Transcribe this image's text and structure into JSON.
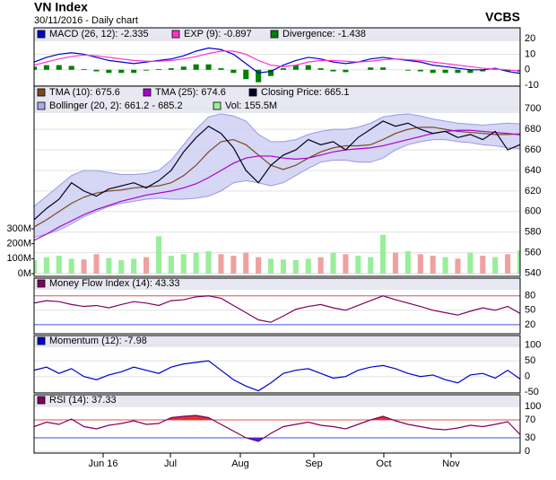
{
  "header": {
    "title": "VN Index",
    "subtitle": "30/11/2016 - Daily chart",
    "brand": "VCBS"
  },
  "chart_data": [
    {
      "type": "line",
      "x": [
        0,
        1,
        2,
        3,
        4,
        5,
        6,
        7,
        8,
        9,
        10,
        11,
        12,
        13,
        14,
        15,
        16,
        17,
        18,
        19,
        20,
        21,
        22,
        23,
        24,
        25,
        26,
        27,
        28,
        29,
        30,
        31,
        32,
        33,
        34,
        35,
        36,
        37,
        38,
        39
      ],
      "xlim": [
        0,
        39
      ],
      "ylim": [
        -10.5,
        27
      ],
      "yticks": [
        20,
        10,
        0,
        -10
      ],
      "series": [
        {
          "name": "MACD (26, 12): -2.335",
          "color": "#0000cc",
          "type": "line",
          "values": [
            5,
            8,
            10,
            11,
            10,
            8,
            6,
            5,
            4,
            5,
            6,
            7,
            9,
            12,
            14,
            13,
            10,
            4,
            -2,
            -1,
            3,
            6,
            8,
            7,
            5,
            4,
            5,
            7,
            8,
            7,
            6,
            5,
            3,
            2,
            1,
            0,
            0,
            1,
            -1,
            -2.335
          ]
        },
        {
          "name": "EXP (9): -0.897",
          "color": "#ff33cc",
          "type": "line",
          "values": [
            3,
            5,
            7,
            8.5,
            9.5,
            9,
            8,
            7,
            6,
            5.5,
            5.5,
            6,
            7,
            8.5,
            10.5,
            12,
            12,
            10,
            6,
            3,
            2,
            3,
            5,
            6,
            6,
            5.5,
            5,
            5.5,
            6.5,
            7,
            6.5,
            6,
            5,
            4,
            3,
            2,
            1,
            0.5,
            0,
            -0.897
          ]
        },
        {
          "name": "Divergence: -1.438",
          "color": "#008000",
          "type": "bar",
          "values": [
            2,
            3,
            3,
            2.5,
            0.5,
            -1,
            -2,
            -2,
            -2,
            -0.5,
            0.5,
            1,
            2,
            3.5,
            3.5,
            1,
            -2,
            -6,
            -8,
            -4,
            1,
            3,
            3,
            1,
            -1,
            -1.5,
            0,
            1.5,
            1.5,
            0,
            -0.5,
            -1,
            -2,
            -2,
            -2,
            -2,
            -1,
            0.5,
            -1,
            -1.438
          ]
        }
      ]
    },
    {
      "type": "line",
      "x": [
        0,
        1,
        2,
        3,
        4,
        5,
        6,
        7,
        8,
        9,
        10,
        11,
        12,
        13,
        14,
        15,
        16,
        17,
        18,
        19,
        20,
        21,
        22,
        23,
        24,
        25,
        26,
        27,
        28,
        29,
        30,
        31,
        32,
        33,
        34,
        35,
        36,
        37,
        38,
        39
      ],
      "xlim": [
        0,
        39
      ],
      "ylim": [
        537,
        722
      ],
      "yticks": [
        700,
        680,
        660,
        640,
        620,
        600,
        580,
        560,
        540
      ],
      "y2lim": [
        -18,
        1254
      ],
      "y2ticks": [
        {
          "value": 300,
          "label": "300M"
        },
        {
          "value": 200,
          "label": "200M"
        },
        {
          "value": 100,
          "label": "100M"
        },
        {
          "value": 0,
          "label": "0M"
        }
      ],
      "series": [
        {
          "name": "TMA (10): 675.6",
          "color": "#7a4a1e",
          "type": "line",
          "values": [
            585,
            592,
            600,
            608,
            614,
            618,
            620,
            621,
            623,
            624,
            625,
            628,
            635,
            645,
            658,
            668,
            670,
            665,
            655,
            645,
            641,
            645,
            652,
            658,
            662,
            664,
            664,
            665,
            670,
            676,
            680,
            682,
            682,
            680,
            678,
            677,
            676,
            675,
            675,
            675.6
          ]
        },
        {
          "name": "TMA (25): 674.6",
          "color": "#aa00cc",
          "type": "line",
          "values": [
            572,
            578,
            585,
            591,
            597,
            602,
            606,
            610,
            613,
            616,
            618,
            620,
            623,
            627,
            633,
            640,
            647,
            652,
            654,
            654,
            652,
            651,
            652,
            655,
            658,
            660,
            661,
            662,
            664,
            667,
            670,
            673,
            676,
            678,
            679,
            679,
            678,
            677,
            676,
            674.6
          ]
        },
        {
          "name": "Closing Price: 665.1",
          "color": "#000022",
          "type": "line",
          "values": [
            592,
            603,
            612,
            628,
            620,
            615,
            622,
            625,
            628,
            623,
            630,
            640,
            658,
            672,
            683,
            676,
            662,
            640,
            628,
            645,
            655,
            660,
            670,
            665,
            668,
            660,
            672,
            680,
            688,
            683,
            686,
            680,
            676,
            678,
            672,
            675,
            670,
            678,
            660,
            665.1
          ]
        },
        {
          "name": "Bollinger (20, 2): 661.2 - 685.2",
          "color": "#9999e6",
          "type": "band",
          "upper": [
            605,
            615,
            625,
            635,
            640,
            640,
            638,
            636,
            636,
            637,
            640,
            650,
            665,
            680,
            692,
            695,
            693,
            688,
            675,
            668,
            668,
            670,
            675,
            678,
            680,
            680,
            682,
            686,
            692,
            694,
            695,
            693,
            690,
            688,
            686,
            685,
            684,
            685,
            686,
            685.2
          ],
          "lower": [
            575,
            578,
            582,
            588,
            595,
            600,
            605,
            608,
            610,
            612,
            613,
            612,
            612,
            613,
            615,
            620,
            628,
            630,
            628,
            625,
            628,
            635,
            642,
            648,
            650,
            650,
            648,
            648,
            652,
            660,
            665,
            668,
            670,
            670,
            668,
            667,
            665,
            664,
            662,
            661.2
          ]
        },
        {
          "name": "Vol: 155.5M",
          "color": "#99ee99",
          "type": "bar",
          "axis": "y2",
          "values": [
            90,
            110,
            120,
            100,
            95,
            130,
            105,
            90,
            100,
            110,
            250,
            120,
            130,
            140,
            150,
            130,
            120,
            140,
            110,
            100,
            95,
            90,
            100,
            110,
            140,
            130,
            120,
            110,
            260,
            140,
            150,
            130,
            120,
            110,
            100,
            140,
            120,
            110,
            130,
            155.5
          ]
        }
      ]
    },
    {
      "type": "line",
      "x": [
        0,
        1,
        2,
        3,
        4,
        5,
        6,
        7,
        8,
        9,
        10,
        11,
        12,
        13,
        14,
        15,
        16,
        17,
        18,
        19,
        20,
        21,
        22,
        23,
        24,
        25,
        26,
        27,
        28,
        29,
        30,
        31,
        32,
        33,
        34,
        35,
        36,
        37,
        38,
        39
      ],
      "xlim": [
        0,
        39
      ],
      "ylim": [
        1,
        117
      ],
      "yticks": [
        80,
        50,
        20
      ],
      "upper": 80,
      "lower": 20,
      "series": [
        {
          "name": "Money Flow Index (14): 43.33",
          "color": "#800060",
          "type": "line",
          "values": [
            65,
            70,
            68,
            62,
            58,
            60,
            55,
            62,
            68,
            65,
            60,
            70,
            72,
            78,
            80,
            75,
            60,
            45,
            30,
            25,
            38,
            52,
            58,
            62,
            55,
            50,
            60,
            70,
            80,
            72,
            65,
            58,
            50,
            45,
            40,
            48,
            55,
            50,
            58,
            43.33
          ]
        }
      ]
    },
    {
      "type": "line",
      "x": [
        0,
        1,
        2,
        3,
        4,
        5,
        6,
        7,
        8,
        9,
        10,
        11,
        12,
        13,
        14,
        15,
        16,
        17,
        18,
        19,
        20,
        21,
        22,
        23,
        24,
        25,
        26,
        27,
        28,
        29,
        30,
        31,
        32,
        33,
        34,
        35,
        36,
        37,
        38,
        39
      ],
      "xlim": [
        0,
        39
      ],
      "ylim": [
        -52,
        130
      ],
      "yticks": [
        100,
        50,
        0,
        -50
      ],
      "series": [
        {
          "name": "Momentum (12): -7.98",
          "color": "#0000cc",
          "type": "line",
          "values": [
            20,
            30,
            10,
            25,
            0,
            -10,
            5,
            15,
            30,
            20,
            10,
            30,
            40,
            45,
            50,
            20,
            -10,
            -30,
            -45,
            -20,
            10,
            20,
            25,
            10,
            -5,
            0,
            20,
            30,
            35,
            25,
            10,
            0,
            5,
            -10,
            -20,
            5,
            10,
            -5,
            20,
            -7.98
          ]
        }
      ]
    },
    {
      "type": "line",
      "x": [
        0,
        1,
        2,
        3,
        4,
        5,
        6,
        7,
        8,
        9,
        10,
        11,
        12,
        13,
        14,
        15,
        16,
        17,
        18,
        19,
        20,
        21,
        22,
        23,
        24,
        25,
        26,
        27,
        28,
        29,
        30,
        31,
        32,
        33,
        34,
        35,
        36,
        37,
        38,
        39
      ],
      "xlim": [
        0,
        39
      ],
      "ylim": [
        -4,
        126
      ],
      "yticks": [
        100,
        70,
        30,
        0
      ],
      "upper": 70,
      "lower": 30,
      "fill_extremes": true,
      "xticks": [
        {
          "value": 5.54,
          "label": "Jun 16"
        },
        {
          "value": 10.94,
          "label": "Jul"
        },
        {
          "value": 16.55,
          "label": "Aug"
        },
        {
          "value": 22.45,
          "label": "Sep"
        },
        {
          "value": 28.06,
          "label": "Oct"
        },
        {
          "value": 33.46,
          "label": "Nov"
        }
      ],
      "series": [
        {
          "name": "RSI (14): 37.33",
          "color": "#800060",
          "type": "line",
          "values": [
            55,
            65,
            60,
            72,
            55,
            50,
            58,
            62,
            68,
            60,
            62,
            75,
            78,
            80,
            75,
            60,
            45,
            30,
            22,
            40,
            55,
            60,
            65,
            58,
            55,
            50,
            60,
            70,
            78,
            68,
            60,
            55,
            50,
            48,
            52,
            58,
            55,
            60,
            66,
            37.33
          ]
        }
      ]
    }
  ]
}
